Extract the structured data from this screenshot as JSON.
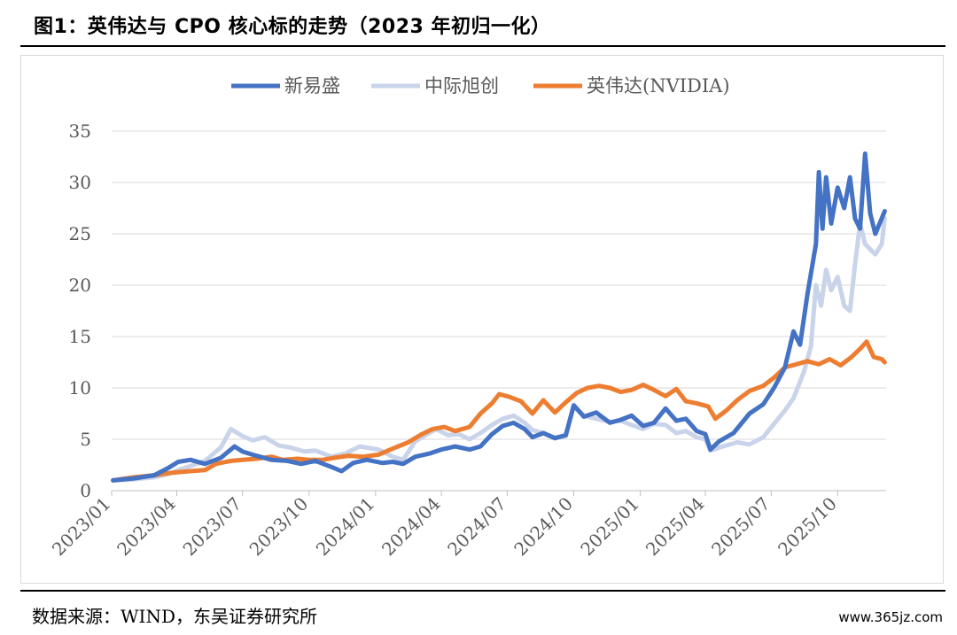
{
  "title": "图1：英伟达与 CPO 核心标的走势（2023 年初归一化）",
  "source": "数据来源：WIND，东吴证券研究所",
  "watermark": "www.365jz.com",
  "chart_data": {
    "type": "line",
    "title": "图1：英伟达与 CPO 核心标的走势（2023 年初归一化）",
    "xlabel": "",
    "ylabel": "",
    "ylim": [
      0,
      35
    ],
    "yticks": [
      0,
      5,
      10,
      15,
      20,
      25,
      30,
      35
    ],
    "grid": true,
    "legend_position": "top-center",
    "xtick_labels": [
      "2023/01",
      "2023/04",
      "2023/07",
      "2023/10",
      "2024/01",
      "2024/04",
      "2024/07",
      "2024/10",
      "2025/01",
      "2025/04",
      "2025/07",
      "2025/10"
    ],
    "series": [
      {
        "name": "新易盛",
        "color": "#4472C4",
        "points": [
          [
            "2023/01/03",
            1.0
          ],
          [
            "2023/02/01",
            1.2
          ],
          [
            "2023/03/01",
            1.5
          ],
          [
            "2023/03/20",
            2.2
          ],
          [
            "2023/04/03",
            2.8
          ],
          [
            "2023/04/20",
            3.0
          ],
          [
            "2023/05/10",
            2.6
          ],
          [
            "2023/06/01",
            3.2
          ],
          [
            "2023/06/20",
            4.3
          ],
          [
            "2023/07/01",
            3.8
          ],
          [
            "2023/07/20",
            3.4
          ],
          [
            "2023/08/10",
            3.0
          ],
          [
            "2023/09/01",
            2.9
          ],
          [
            "2023/09/20",
            2.6
          ],
          [
            "2023/10/10",
            2.9
          ],
          [
            "2023/11/01",
            2.3
          ],
          [
            "2023/11/15",
            1.9
          ],
          [
            "2023/12/01",
            2.7
          ],
          [
            "2023/12/20",
            3.0
          ],
          [
            "2024/01/10",
            2.7
          ],
          [
            "2024/01/25",
            2.8
          ],
          [
            "2024/02/08",
            2.6
          ],
          [
            "2024/02/25",
            3.3
          ],
          [
            "2024/03/15",
            3.6
          ],
          [
            "2024/04/01",
            4.0
          ],
          [
            "2024/04/20",
            4.3
          ],
          [
            "2024/05/10",
            4.0
          ],
          [
            "2024/05/25",
            4.3
          ],
          [
            "2024/06/10",
            5.5
          ],
          [
            "2024/06/25",
            6.3
          ],
          [
            "2024/07/10",
            6.6
          ],
          [
            "2024/07/25",
            6.0
          ],
          [
            "2024/08/05",
            5.2
          ],
          [
            "2024/08/20",
            5.6
          ],
          [
            "2024/09/05",
            5.1
          ],
          [
            "2024/09/20",
            5.4
          ],
          [
            "2024/10/01",
            8.3
          ],
          [
            "2024/10/15",
            7.2
          ],
          [
            "2024/11/01",
            7.6
          ],
          [
            "2024/11/20",
            6.6
          ],
          [
            "2024/12/05",
            6.9
          ],
          [
            "2024/12/20",
            7.3
          ],
          [
            "2025/01/05",
            6.3
          ],
          [
            "2025/01/20",
            6.6
          ],
          [
            "2025/02/05",
            8.0
          ],
          [
            "2025/02/20",
            6.8
          ],
          [
            "2025/03/05",
            7.0
          ],
          [
            "2025/03/20",
            5.8
          ],
          [
            "2025/04/01",
            5.5
          ],
          [
            "2025/04/08",
            4.0
          ],
          [
            "2025/04/20",
            4.8
          ],
          [
            "2025/05/10",
            5.6
          ],
          [
            "2025/06/01",
            7.5
          ],
          [
            "2025/06/20",
            8.4
          ],
          [
            "2025/07/05",
            10.0
          ],
          [
            "2025/07/20",
            12.0
          ],
          [
            "2025/08/01",
            15.5
          ],
          [
            "2025/08/10",
            14.2
          ],
          [
            "2025/08/20",
            19.0
          ],
          [
            "2025/09/01",
            24.0
          ],
          [
            "2025/09/05",
            31.0
          ],
          [
            "2025/09/10",
            25.5
          ],
          [
            "2025/09/15",
            30.5
          ],
          [
            "2025/09/22",
            26.0
          ],
          [
            "2025/10/01",
            29.5
          ],
          [
            "2025/10/10",
            27.5
          ],
          [
            "2025/10/18",
            30.5
          ],
          [
            "2025/10/25",
            26.5
          ],
          [
            "2025/11/01",
            25.5
          ],
          [
            "2025/11/08",
            32.8
          ],
          [
            "2025/11/15",
            27.0
          ],
          [
            "2025/11/22",
            25.0
          ],
          [
            "2025/12/01",
            26.5
          ],
          [
            "2025/12/05",
            27.2
          ]
        ]
      },
      {
        "name": "中际旭创",
        "color": "#C9D3EA",
        "points": [
          [
            "2023/01/03",
            1.0
          ],
          [
            "2023/02/01",
            1.1
          ],
          [
            "2023/03/01",
            1.3
          ],
          [
            "2023/03/20",
            1.6
          ],
          [
            "2023/04/03",
            2.0
          ],
          [
            "2023/04/20",
            2.4
          ],
          [
            "2023/05/10",
            2.9
          ],
          [
            "2023/06/01",
            4.2
          ],
          [
            "2023/06/15",
            6.0
          ],
          [
            "2023/07/01",
            5.3
          ],
          [
            "2023/07/15",
            4.9
          ],
          [
            "2023/08/01",
            5.2
          ],
          [
            "2023/08/20",
            4.4
          ],
          [
            "2023/09/05",
            4.2
          ],
          [
            "2023/09/25",
            3.8
          ],
          [
            "2023/10/10",
            3.9
          ],
          [
            "2023/11/01",
            3.3
          ],
          [
            "2023/11/20",
            3.6
          ],
          [
            "2023/12/10",
            4.3
          ],
          [
            "2024/01/05",
            4.0
          ],
          [
            "2024/01/25",
            3.3
          ],
          [
            "2024/02/08",
            3.0
          ],
          [
            "2024/02/25",
            4.8
          ],
          [
            "2024/03/10",
            5.4
          ],
          [
            "2024/03/25",
            6.0
          ],
          [
            "2024/04/10",
            5.4
          ],
          [
            "2024/04/25",
            5.5
          ],
          [
            "2024/05/10",
            5.0
          ],
          [
            "2024/05/25",
            5.6
          ],
          [
            "2024/06/10",
            6.4
          ],
          [
            "2024/06/25",
            7.0
          ],
          [
            "2024/07/10",
            7.3
          ],
          [
            "2024/07/25",
            6.6
          ],
          [
            "2024/08/05",
            5.9
          ],
          [
            "2024/08/20",
            5.6
          ],
          [
            "2024/09/05",
            5.2
          ],
          [
            "2024/09/20",
            5.3
          ],
          [
            "2024/10/01",
            8.3
          ],
          [
            "2024/10/15",
            7.3
          ],
          [
            "2024/11/01",
            7.0
          ],
          [
            "2024/11/20",
            6.7
          ],
          [
            "2024/12/05",
            6.8
          ],
          [
            "2024/12/20",
            6.4
          ],
          [
            "2025/01/05",
            6.0
          ],
          [
            "2025/01/20",
            6.5
          ],
          [
            "2025/02/05",
            6.4
          ],
          [
            "2025/02/20",
            5.6
          ],
          [
            "2025/03/05",
            5.8
          ],
          [
            "2025/03/20",
            5.2
          ],
          [
            "2025/04/01",
            5.0
          ],
          [
            "2025/04/08",
            3.9
          ],
          [
            "2025/04/25",
            4.3
          ],
          [
            "2025/05/15",
            4.7
          ],
          [
            "2025/06/01",
            4.5
          ],
          [
            "2025/06/20",
            5.2
          ],
          [
            "2025/07/05",
            6.5
          ],
          [
            "2025/07/20",
            7.8
          ],
          [
            "2025/08/01",
            9.0
          ],
          [
            "2025/08/15",
            11.5
          ],
          [
            "2025/08/25",
            14.0
          ],
          [
            "2025/09/01",
            20.0
          ],
          [
            "2025/09/08",
            18.0
          ],
          [
            "2025/09/15",
            21.5
          ],
          [
            "2025/09/22",
            19.5
          ],
          [
            "2025/10/01",
            20.8
          ],
          [
            "2025/10/10",
            18.0
          ],
          [
            "2025/10/18",
            17.5
          ],
          [
            "2025/10/25",
            22.0
          ],
          [
            "2025/11/01",
            26.0
          ],
          [
            "2025/11/08",
            24.0
          ],
          [
            "2025/11/15",
            23.5
          ],
          [
            "2025/11/22",
            23.0
          ],
          [
            "2025/12/01",
            24.0
          ],
          [
            "2025/12/05",
            26.5
          ]
        ]
      },
      {
        "name": "英伟达(NVIDIA)",
        "color": "#ED7D31",
        "points": [
          [
            "2023/01/03",
            1.0
          ],
          [
            "2023/02/01",
            1.3
          ],
          [
            "2023/03/01",
            1.5
          ],
          [
            "2023/03/20",
            1.7
          ],
          [
            "2023/04/03",
            1.8
          ],
          [
            "2023/04/20",
            1.9
          ],
          [
            "2023/05/10",
            2.0
          ],
          [
            "2023/05/25",
            2.6
          ],
          [
            "2023/06/15",
            2.9
          ],
          [
            "2023/07/01",
            3.0
          ],
          [
            "2023/07/20",
            3.1
          ],
          [
            "2023/08/10",
            3.3
          ],
          [
            "2023/08/25",
            3.0
          ],
          [
            "2023/09/15",
            3.1
          ],
          [
            "2023/10/01",
            3.0
          ],
          [
            "2023/10/20",
            3.0
          ],
          [
            "2023/11/05",
            3.2
          ],
          [
            "2023/11/25",
            3.4
          ],
          [
            "2023/12/15",
            3.3
          ],
          [
            "2024/01/05",
            3.5
          ],
          [
            "2024/01/25",
            4.1
          ],
          [
            "2024/02/15",
            4.7
          ],
          [
            "2024/03/05",
            5.5
          ],
          [
            "2024/03/20",
            6.0
          ],
          [
            "2024/04/05",
            6.2
          ],
          [
            "2024/04/20",
            5.8
          ],
          [
            "2024/05/10",
            6.2
          ],
          [
            "2024/05/25",
            7.5
          ],
          [
            "2024/06/10",
            8.5
          ],
          [
            "2024/06/20",
            9.4
          ],
          [
            "2024/07/05",
            9.1
          ],
          [
            "2024/07/20",
            8.7
          ],
          [
            "2024/08/05",
            7.5
          ],
          [
            "2024/08/20",
            8.8
          ],
          [
            "2024/09/05",
            7.6
          ],
          [
            "2024/09/20",
            8.6
          ],
          [
            "2024/10/05",
            9.5
          ],
          [
            "2024/10/20",
            10.0
          ],
          [
            "2024/11/05",
            10.2
          ],
          [
            "2024/11/20",
            10.0
          ],
          [
            "2024/12/05",
            9.6
          ],
          [
            "2024/12/20",
            9.8
          ],
          [
            "2025/01/05",
            10.3
          ],
          [
            "2025/01/20",
            9.8
          ],
          [
            "2025/02/05",
            9.2
          ],
          [
            "2025/02/20",
            9.9
          ],
          [
            "2025/03/05",
            8.7
          ],
          [
            "2025/03/20",
            8.5
          ],
          [
            "2025/04/05",
            8.2
          ],
          [
            "2025/04/15",
            7.0
          ],
          [
            "2025/04/30",
            7.8
          ],
          [
            "2025/05/15",
            8.8
          ],
          [
            "2025/06/01",
            9.7
          ],
          [
            "2025/06/20",
            10.2
          ],
          [
            "2025/07/05",
            11.0
          ],
          [
            "2025/07/20",
            12.0
          ],
          [
            "2025/08/05",
            12.3
          ],
          [
            "2025/08/20",
            12.6
          ],
          [
            "2025/09/05",
            12.3
          ],
          [
            "2025/09/20",
            12.8
          ],
          [
            "2025/10/05",
            12.2
          ],
          [
            "2025/10/20",
            13.0
          ],
          [
            "2025/11/01",
            13.8
          ],
          [
            "2025/11/10",
            14.5
          ],
          [
            "2025/11/20",
            13.0
          ],
          [
            "2025/12/01",
            12.8
          ],
          [
            "2025/12/05",
            12.5
          ]
        ]
      }
    ]
  }
}
